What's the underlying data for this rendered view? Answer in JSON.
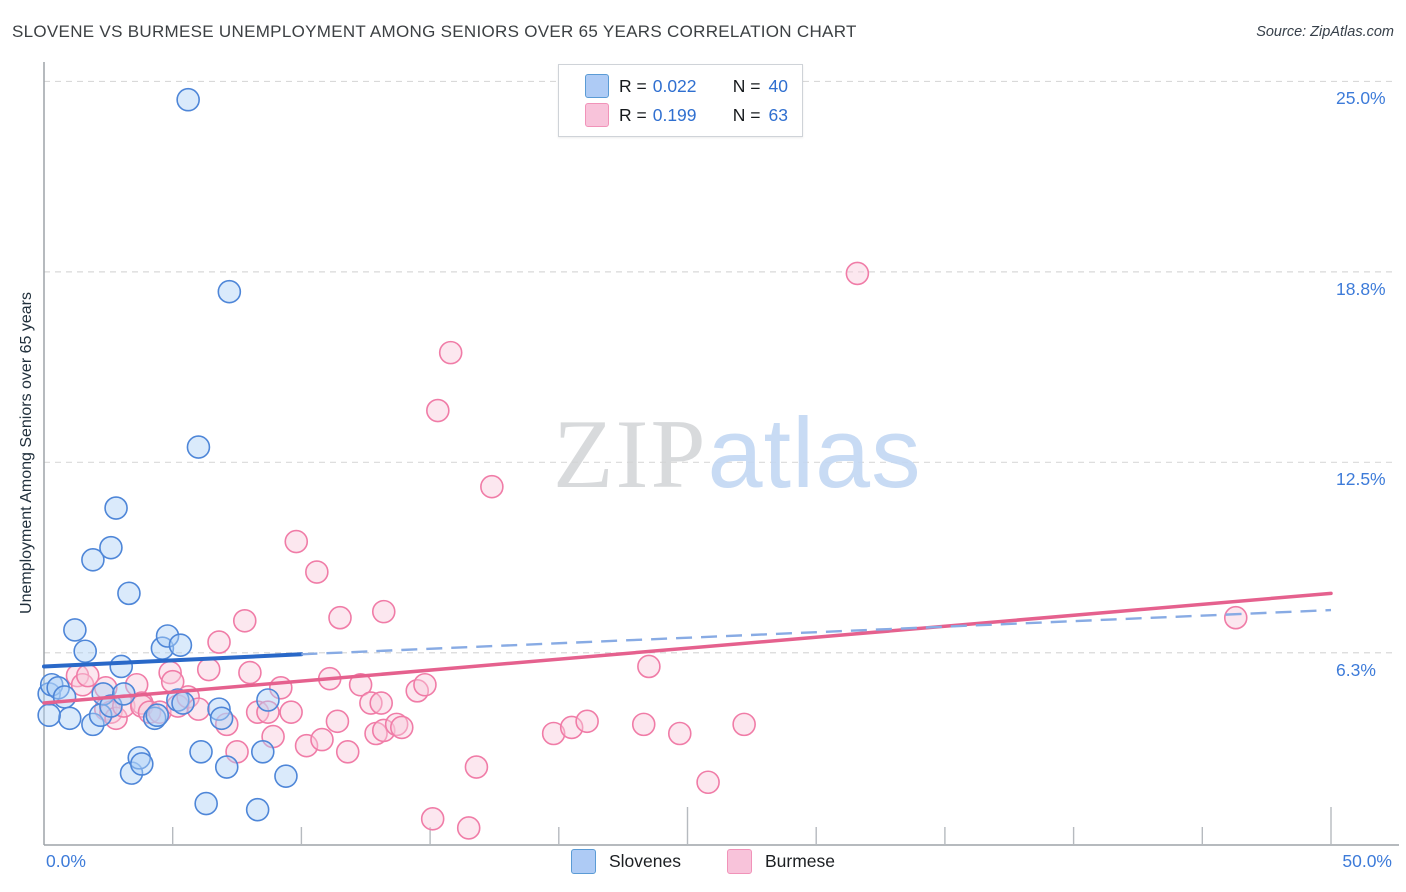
{
  "header": {
    "title": "SLOVENE VS BURMESE UNEMPLOYMENT AMONG SENIORS OVER 65 YEARS CORRELATION CHART",
    "source": "Source: ZipAtlas.com"
  },
  "watermark": {
    "zip": "ZIP",
    "atlas": "atlas"
  },
  "legend_box": {
    "rows": [
      {
        "series": "slovenes",
        "r_label": "R =",
        "r": "0.022",
        "n_label": "N =",
        "n": "40",
        "swatch_color": "#AECBF5",
        "swatch_border": "#5B9BD5"
      },
      {
        "series": "burmese",
        "r_label": "R =",
        "r": "0.199",
        "n_label": "N =",
        "n": "63",
        "swatch_color": "#F8C3DA",
        "swatch_border": "#F193B9"
      }
    ]
  },
  "bottom_legend": {
    "items": [
      {
        "label": "Slovenes",
        "swatch_color": "#AECBF5",
        "swatch_border": "#5B9BD5"
      },
      {
        "label": "Burmese",
        "swatch_color": "#F8C3DA",
        "swatch_border": "#F193B9"
      }
    ]
  },
  "axes": {
    "y_label": "Unemployment Among Seniors over 65 years",
    "y_ticks": [
      {
        "label": "25.0%",
        "value": 25.0
      },
      {
        "label": "18.8%",
        "value": 18.75
      },
      {
        "label": "12.5%",
        "value": 12.5
      },
      {
        "label": "6.3%",
        "value": 6.25
      }
    ],
    "x_tick_labels": [
      {
        "label": "0.0%",
        "value": 0
      },
      {
        "label": "50.0%",
        "value": 50
      }
    ],
    "x_minor_ticks": [
      5,
      10,
      15,
      20,
      30,
      35,
      40,
      45
    ],
    "x_major_ticks": [
      25,
      50
    ]
  },
  "chart_data": {
    "type": "scatter",
    "xlabel": "",
    "ylabel": "Unemployment Among Seniors over 65 years",
    "x_range_pct": [
      0,
      50
    ],
    "y_range_pct": [
      0,
      25.7
    ],
    "grid": "horizontal-dashed",
    "series": [
      {
        "name": "Slovenes",
        "r": 0.022,
        "n": 40,
        "point_fill": "#ADD0F7",
        "point_stroke": "#4E86D8",
        "points": [
          [
            0.2,
            4.9
          ],
          [
            0.3,
            5.2
          ],
          [
            0.55,
            5.1
          ],
          [
            0.8,
            4.8
          ],
          [
            1.0,
            4.1
          ],
          [
            1.2,
            7.0
          ],
          [
            1.6,
            6.3
          ],
          [
            1.9,
            9.3
          ],
          [
            1.9,
            3.9
          ],
          [
            2.2,
            4.2
          ],
          [
            2.3,
            4.9
          ],
          [
            2.6,
            9.7
          ],
          [
            2.6,
            4.5
          ],
          [
            2.8,
            11.0
          ],
          [
            3.0,
            5.8
          ],
          [
            3.1,
            4.9
          ],
          [
            3.3,
            8.2
          ],
          [
            3.4,
            2.3
          ],
          [
            3.7,
            2.8
          ],
          [
            3.8,
            2.6
          ],
          [
            4.3,
            4.1
          ],
          [
            4.4,
            4.2
          ],
          [
            4.6,
            6.4
          ],
          [
            4.8,
            6.8
          ],
          [
            5.2,
            4.7
          ],
          [
            5.3,
            6.5
          ],
          [
            5.4,
            4.6
          ],
          [
            5.6,
            24.4
          ],
          [
            6.0,
            13.0
          ],
          [
            6.1,
            3.0
          ],
          [
            6.3,
            1.3
          ],
          [
            6.8,
            4.4
          ],
          [
            6.9,
            4.1
          ],
          [
            7.1,
            2.5
          ],
          [
            7.2,
            18.1
          ],
          [
            8.3,
            1.1
          ],
          [
            8.5,
            3.0
          ],
          [
            8.7,
            4.7
          ],
          [
            9.4,
            2.2
          ],
          [
            0.2,
            4.2
          ]
        ],
        "trend_solid": [
          [
            0,
            5.8
          ],
          [
            10,
            6.2
          ]
        ],
        "trend_dashed": [
          [
            10,
            6.2
          ],
          [
            50,
            7.65
          ]
        ],
        "trend_color": "#2968C8",
        "trend_dash_color": "#88ABE4"
      },
      {
        "name": "Burmese",
        "r": 0.199,
        "n": 63,
        "point_fill": "#F9C9DB",
        "point_stroke": "#F07CA7",
        "points": [
          [
            1.3,
            5.5
          ],
          [
            1.5,
            5.2
          ],
          [
            1.7,
            5.5
          ],
          [
            2.4,
            5.1
          ],
          [
            2.4,
            4.4
          ],
          [
            2.6,
            4.3
          ],
          [
            2.8,
            4.1
          ],
          [
            3.1,
            4.5
          ],
          [
            3.6,
            5.2
          ],
          [
            3.8,
            4.6
          ],
          [
            3.8,
            4.5
          ],
          [
            4.1,
            4.3
          ],
          [
            4.5,
            4.3
          ],
          [
            4.9,
            5.6
          ],
          [
            5.0,
            5.3
          ],
          [
            5.2,
            4.5
          ],
          [
            5.6,
            4.8
          ],
          [
            6.0,
            4.4
          ],
          [
            6.4,
            5.7
          ],
          [
            6.8,
            6.6
          ],
          [
            7.1,
            3.9
          ],
          [
            7.5,
            3.0
          ],
          [
            7.8,
            7.3
          ],
          [
            8.0,
            5.6
          ],
          [
            8.3,
            4.3
          ],
          [
            8.7,
            4.3
          ],
          [
            8.9,
            3.5
          ],
          [
            9.2,
            5.1
          ],
          [
            9.6,
            4.3
          ],
          [
            9.8,
            9.9
          ],
          [
            10.2,
            3.2
          ],
          [
            10.6,
            8.9
          ],
          [
            10.8,
            3.4
          ],
          [
            11.1,
            5.4
          ],
          [
            11.4,
            4.0
          ],
          [
            11.5,
            7.4
          ],
          [
            11.8,
            3.0
          ],
          [
            12.3,
            5.2
          ],
          [
            12.7,
            4.6
          ],
          [
            12.9,
            3.6
          ],
          [
            13.1,
            4.6
          ],
          [
            13.2,
            7.6
          ],
          [
            13.2,
            3.7
          ],
          [
            13.7,
            3.9
          ],
          [
            13.9,
            3.8
          ],
          [
            14.5,
            5.0
          ],
          [
            14.8,
            5.2
          ],
          [
            15.1,
            0.8
          ],
          [
            15.3,
            14.2
          ],
          [
            15.8,
            16.1
          ],
          [
            16.5,
            0.5
          ],
          [
            16.8,
            2.5
          ],
          [
            17.4,
            11.7
          ],
          [
            19.8,
            3.6
          ],
          [
            20.5,
            3.8
          ],
          [
            21.1,
            4.0
          ],
          [
            23.3,
            3.9
          ],
          [
            23.5,
            5.8
          ],
          [
            24.7,
            3.6
          ],
          [
            25.8,
            2.0
          ],
          [
            27.2,
            3.9
          ],
          [
            31.6,
            18.7
          ],
          [
            46.3,
            7.4
          ]
        ],
        "trend_solid": [
          [
            0,
            4.6
          ],
          [
            50,
            8.2
          ]
        ],
        "trend_color": "#E5618E"
      }
    ],
    "colors": {
      "gridline": "#D9D9D9",
      "axis": "#9EA3A8",
      "tick_label": "#3D7BD9"
    }
  }
}
